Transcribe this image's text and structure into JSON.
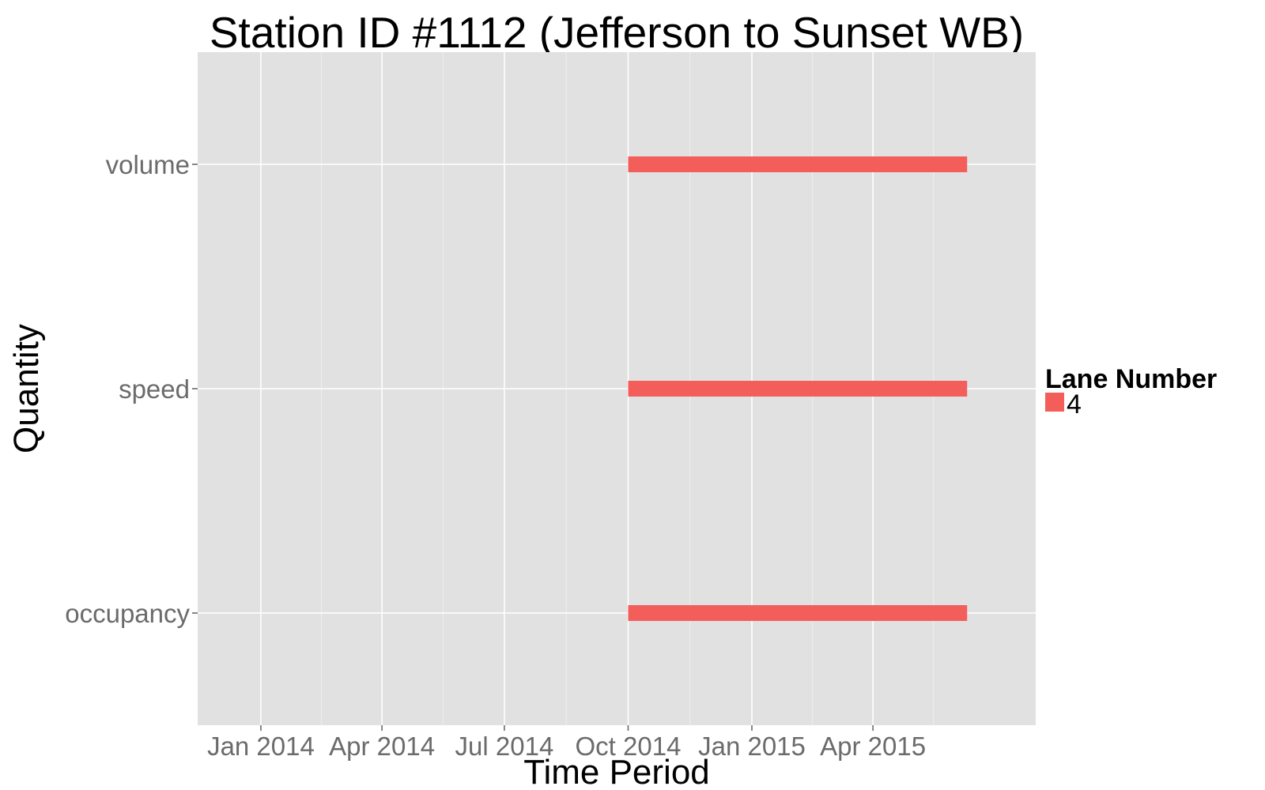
{
  "chart_data": {
    "type": "bar",
    "title": "Station ID #1112 (Jefferson to Sunset WB)",
    "xlabel": "Time Period",
    "ylabel": "Quantity",
    "x_scale": "date",
    "xlim": [
      "2013-11-15",
      "2015-07-31"
    ],
    "x_ticks": [
      {
        "date": "2014-01-01",
        "label": "Jan 2014"
      },
      {
        "date": "2014-04-01",
        "label": "Apr 2014"
      },
      {
        "date": "2014-07-01",
        "label": "Jul 2014"
      },
      {
        "date": "2014-10-01",
        "label": "Oct 2014"
      },
      {
        "date": "2015-01-01",
        "label": "Jan 2015"
      },
      {
        "date": "2015-04-01",
        "label": "Apr 2015"
      }
    ],
    "categories": [
      "volume",
      "speed",
      "occupancy"
    ],
    "legend": {
      "title": "Lane Number",
      "position": "right"
    },
    "grid": true,
    "series": [
      {
        "name": "4",
        "color": "#F35E5A",
        "segments": [
          {
            "category": "volume",
            "start": "2014-10-01",
            "end": "2015-06-10"
          },
          {
            "category": "speed",
            "start": "2014-10-01",
            "end": "2015-06-10"
          },
          {
            "category": "occupancy",
            "start": "2014-10-01",
            "end": "2015-06-10"
          }
        ]
      }
    ]
  }
}
